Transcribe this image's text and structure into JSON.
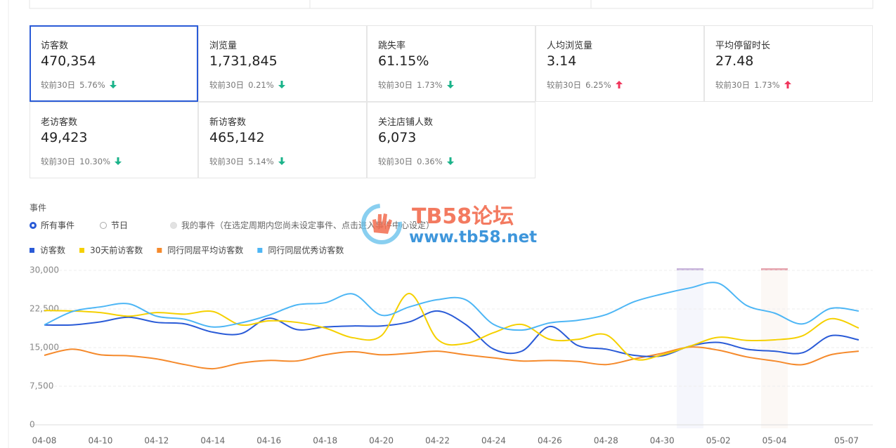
{
  "cards": [
    {
      "label": "访客数",
      "value": "470,354",
      "compare": "较前30日",
      "change": "5.76%",
      "trend": "down"
    },
    {
      "label": "浏览量",
      "value": "1,731,845",
      "compare": "较前30日",
      "change": "0.21%",
      "trend": "down"
    },
    {
      "label": "跳失率",
      "value": "61.15%",
      "compare": "较前30日",
      "change": "1.73%",
      "trend": "down"
    },
    {
      "label": "人均浏览量",
      "value": "3.14",
      "compare": "较前30日",
      "change": "6.25%",
      "trend": "up"
    },
    {
      "label": "平均停留时长",
      "value": "27.48",
      "compare": "较前30日",
      "change": "1.73%",
      "trend": "up"
    },
    {
      "label": "老访客数",
      "value": "49,423",
      "compare": "较前30日",
      "change": "10.30%",
      "trend": "down"
    },
    {
      "label": "新访客数",
      "value": "465,142",
      "compare": "较前30日",
      "change": "5.14%",
      "trend": "down"
    },
    {
      "label": "关注店铺人数",
      "value": "6,073",
      "compare": "较前30日",
      "change": "0.36%",
      "trend": "down"
    }
  ],
  "selected_card": 0,
  "events": {
    "title": "事件",
    "options": [
      "所有事件",
      "节日",
      "我的事件（在选定周期内您尚未设定事件、点击进入事件中心设定）"
    ],
    "selected": 0
  },
  "watermark": {
    "title": "TB58论坛",
    "url": "www.tb58.net"
  },
  "chart_data": {
    "type": "line",
    "categories": [
      "04-08",
      null,
      "04-10",
      null,
      "04-12",
      null,
      "04-14",
      null,
      "04-16",
      null,
      "04-18",
      null,
      "04-20",
      null,
      "04-22",
      null,
      "04-24",
      null,
      "04-26",
      null,
      "04-28",
      null,
      "04-30",
      null,
      "05-02",
      null,
      "05-04",
      null,
      null,
      "05-07"
    ],
    "series": [
      {
        "name": "访客数",
        "color": "#2a5bd7",
        "values": [
          19400.0,
          19400.0,
          20000.0,
          20900.0,
          19900.0,
          19600.0,
          18000.0,
          17700.0,
          20700.0,
          18500.0,
          19000.0,
          19200.0,
          19200.0,
          20000.0,
          22100.0,
          19500.0,
          14700.0,
          14300.0,
          19100.0,
          15400.0,
          14700.0,
          13500.0,
          13400.0,
          15300.0,
          16000.0,
          14700.0,
          14300.0,
          14000.0,
          17300.0,
          16500.0
        ]
      },
      {
        "name": "30天前访客数",
        "color": "#f5d000",
        "values": [
          22200.0,
          22100.0,
          21800.0,
          21100.0,
          21800.0,
          21500.0,
          22000.0,
          19400.0,
          20200.0,
          19900.0,
          18800.0,
          16900.0,
          17300.0,
          25500.0,
          16600.0,
          15800.0,
          17900.0,
          19500.0,
          16600.0,
          16600.0,
          17500.0,
          12800.0,
          13600.0,
          15300.0,
          17000.0,
          16400.0,
          16500.0,
          17300.0,
          20600.0,
          18800.0
        ]
      },
      {
        "name": "同行同层平均访客数",
        "color": "#f58a2c",
        "values": [
          13500.0,
          14700.0,
          13600.0,
          13400.0,
          12800.0,
          11700.0,
          10900.0,
          12000.0,
          12500.0,
          12400.0,
          13600.0,
          14200.0,
          13600.0,
          13900.0,
          14300.0,
          13600.0,
          13000.0,
          12400.0,
          12500.0,
          12300.0,
          11700.0,
          12800.0,
          13900.0,
          15100.0,
          14500.0,
          13200.0,
          12400.0,
          11700.0,
          13600.0,
          14300.0
        ]
      },
      {
        "name": "同行同层优秀访客数",
        "color": "#4db6f5",
        "values": [
          19400.0,
          22000.0,
          22900.0,
          23500.0,
          21100.0,
          20500.0,
          19000.0,
          19800.0,
          21300.0,
          23300.0,
          23700.0,
          25400.0,
          21300.0,
          22900.0,
          24300.0,
          24300.0,
          19500.0,
          18400.0,
          19800.0,
          20300.0,
          21400.0,
          23900.0,
          25400.0,
          26600.0,
          27500.0,
          23200.0,
          21700.0,
          19600.0,
          22600.0,
          22100.0
        ]
      }
    ],
    "ylim": [
      0,
      30000
    ],
    "yticks": [
      0,
      {
        "value": 7500,
        "label": "7,500"
      },
      {
        "value": 15000,
        "label": "15,000"
      },
      {
        "value": 22500,
        "label": "22,500"
      },
      {
        "value": 30000,
        "label": "30,000"
      }
    ],
    "grid": true
  }
}
